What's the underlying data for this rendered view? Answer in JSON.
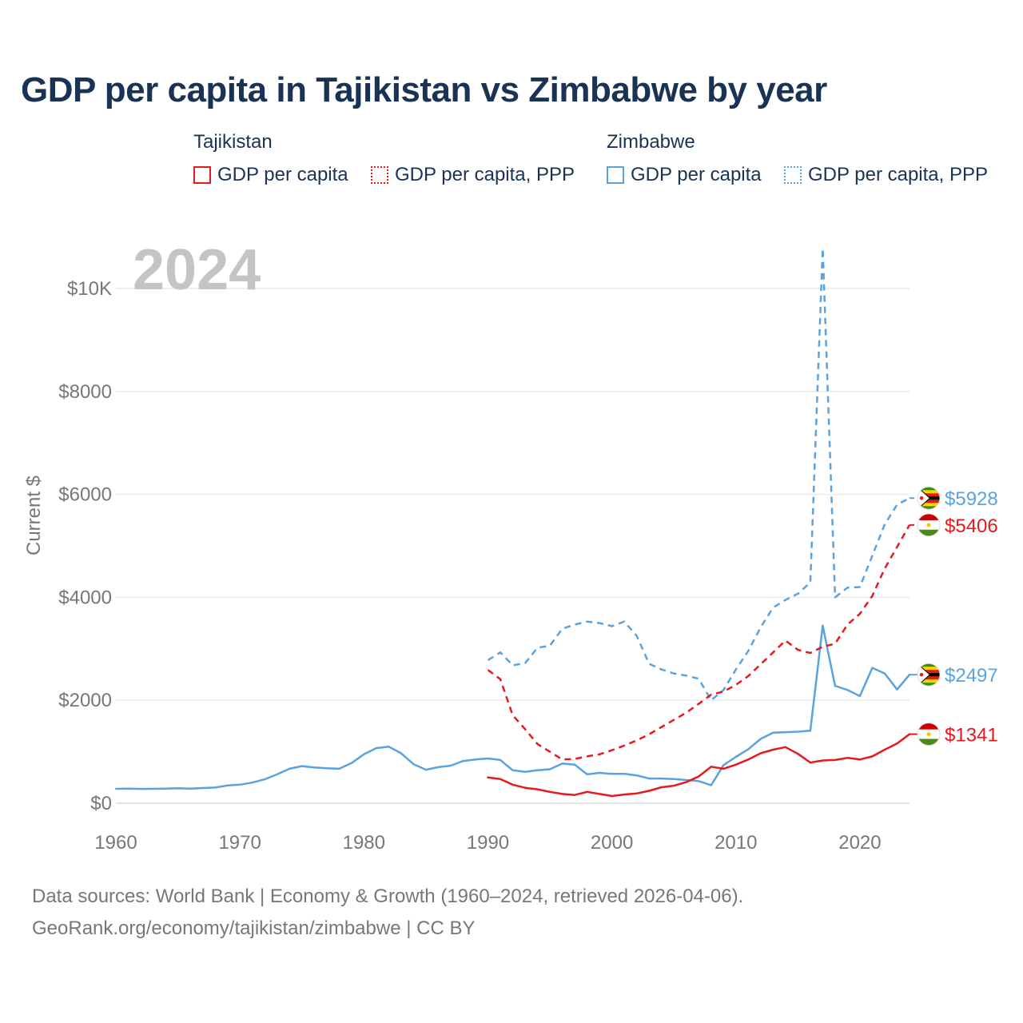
{
  "title": "GDP per capita in Tajikistan vs Zimbabwe by year",
  "legend": {
    "groups": [
      {
        "country": "Tajikistan",
        "color": "#e8191c",
        "items": [
          "GDP per capita",
          "GDP per capita, PPP"
        ]
      },
      {
        "country": "Zimbabwe",
        "color": "#5aa2e0",
        "items": [
          "GDP per capita",
          "GDP per capita, PPP"
        ]
      }
    ]
  },
  "chart_data": {
    "type": "line",
    "year_label": "2024",
    "ylabel": "Current $",
    "xlim": [
      1960,
      2024
    ],
    "ylim": [
      0,
      10000
    ],
    "x_ticks": [
      "1960",
      "1970",
      "1980",
      "1990",
      "2000",
      "2010",
      "2020"
    ],
    "y_ticks": [
      {
        "value": 0,
        "label": "$0"
      },
      {
        "value": 2000,
        "label": "$2000"
      },
      {
        "value": 4000,
        "label": "$4000"
      },
      {
        "value": 6000,
        "label": "$6000"
      },
      {
        "value": 8000,
        "label": "$8000"
      },
      {
        "value": 10000,
        "label": "$10K"
      }
    ],
    "series": [
      {
        "name": "Zimbabwe GDP per capita",
        "country": "Zimbabwe",
        "color": "#5aa2e0",
        "dash": false,
        "start_year": 1960,
        "end_label": "$2497",
        "values": [
          280,
          282,
          278,
          280,
          284,
          292,
          283,
          295,
          305,
          345,
          360,
          400,
          465,
          560,
          670,
          720,
          695,
          680,
          670,
          780,
          950,
          1070,
          1100,
          970,
          760,
          650,
          700,
          730,
          820,
          850,
          870,
          840,
          640,
          610,
          640,
          660,
          770,
          750,
          560,
          590,
          570,
          570,
          540,
          480,
          480,
          470,
          450,
          430,
          350,
          740,
          900,
          1050,
          1250,
          1370,
          1380,
          1390,
          1410,
          3450,
          2280,
          2200,
          2080,
          2630,
          2520,
          2210,
          2497
        ]
      },
      {
        "name": "Zimbabwe GDP per capita, PPP",
        "country": "Zimbabwe",
        "color": "#5aa2e0",
        "dash": true,
        "start_year": 1990,
        "end_label": "$5928",
        "values": [
          2780,
          2930,
          2680,
          2720,
          3020,
          3060,
          3390,
          3470,
          3530,
          3500,
          3440,
          3530,
          3250,
          2710,
          2600,
          2520,
          2480,
          2420,
          2000,
          2200,
          2600,
          2960,
          3420,
          3800,
          3950,
          4070,
          4290,
          10780,
          4000,
          4190,
          4200,
          4810,
          5420,
          5800,
          5928
        ]
      },
      {
        "name": "Tajikistan GDP per capita",
        "country": "Tajikistan",
        "color": "#e8191c",
        "dash": false,
        "start_year": 1990,
        "end_label": "$1341",
        "values": [
          500,
          470,
          360,
          300,
          270,
          220,
          180,
          160,
          220,
          180,
          140,
          170,
          190,
          240,
          310,
          340,
          410,
          520,
          710,
          670,
          750,
          850,
          970,
          1040,
          1090,
          960,
          790,
          830,
          840,
          880,
          850,
          910,
          1040,
          1160,
          1341
        ]
      },
      {
        "name": "Tajikistan GDP per capita, PPP",
        "country": "Tajikistan",
        "color": "#e8191c",
        "dash": true,
        "start_year": 1990,
        "end_label": "$5406",
        "values": [
          2590,
          2410,
          1710,
          1440,
          1150,
          1000,
          850,
          860,
          910,
          950,
          1030,
          1120,
          1220,
          1340,
          1480,
          1620,
          1760,
          1930,
          2110,
          2170,
          2300,
          2470,
          2700,
          2930,
          3160,
          2980,
          2920,
          3040,
          3100,
          3470,
          3680,
          4030,
          4560,
          4980,
          5406
        ]
      }
    ]
  },
  "footer": {
    "line1": "Data sources: World Bank | Economy & Growth (1960–2024, retrieved 2026-04-06).",
    "line2": "GeoRank.org/economy/tajikistan/zimbabwe | CC BY"
  }
}
